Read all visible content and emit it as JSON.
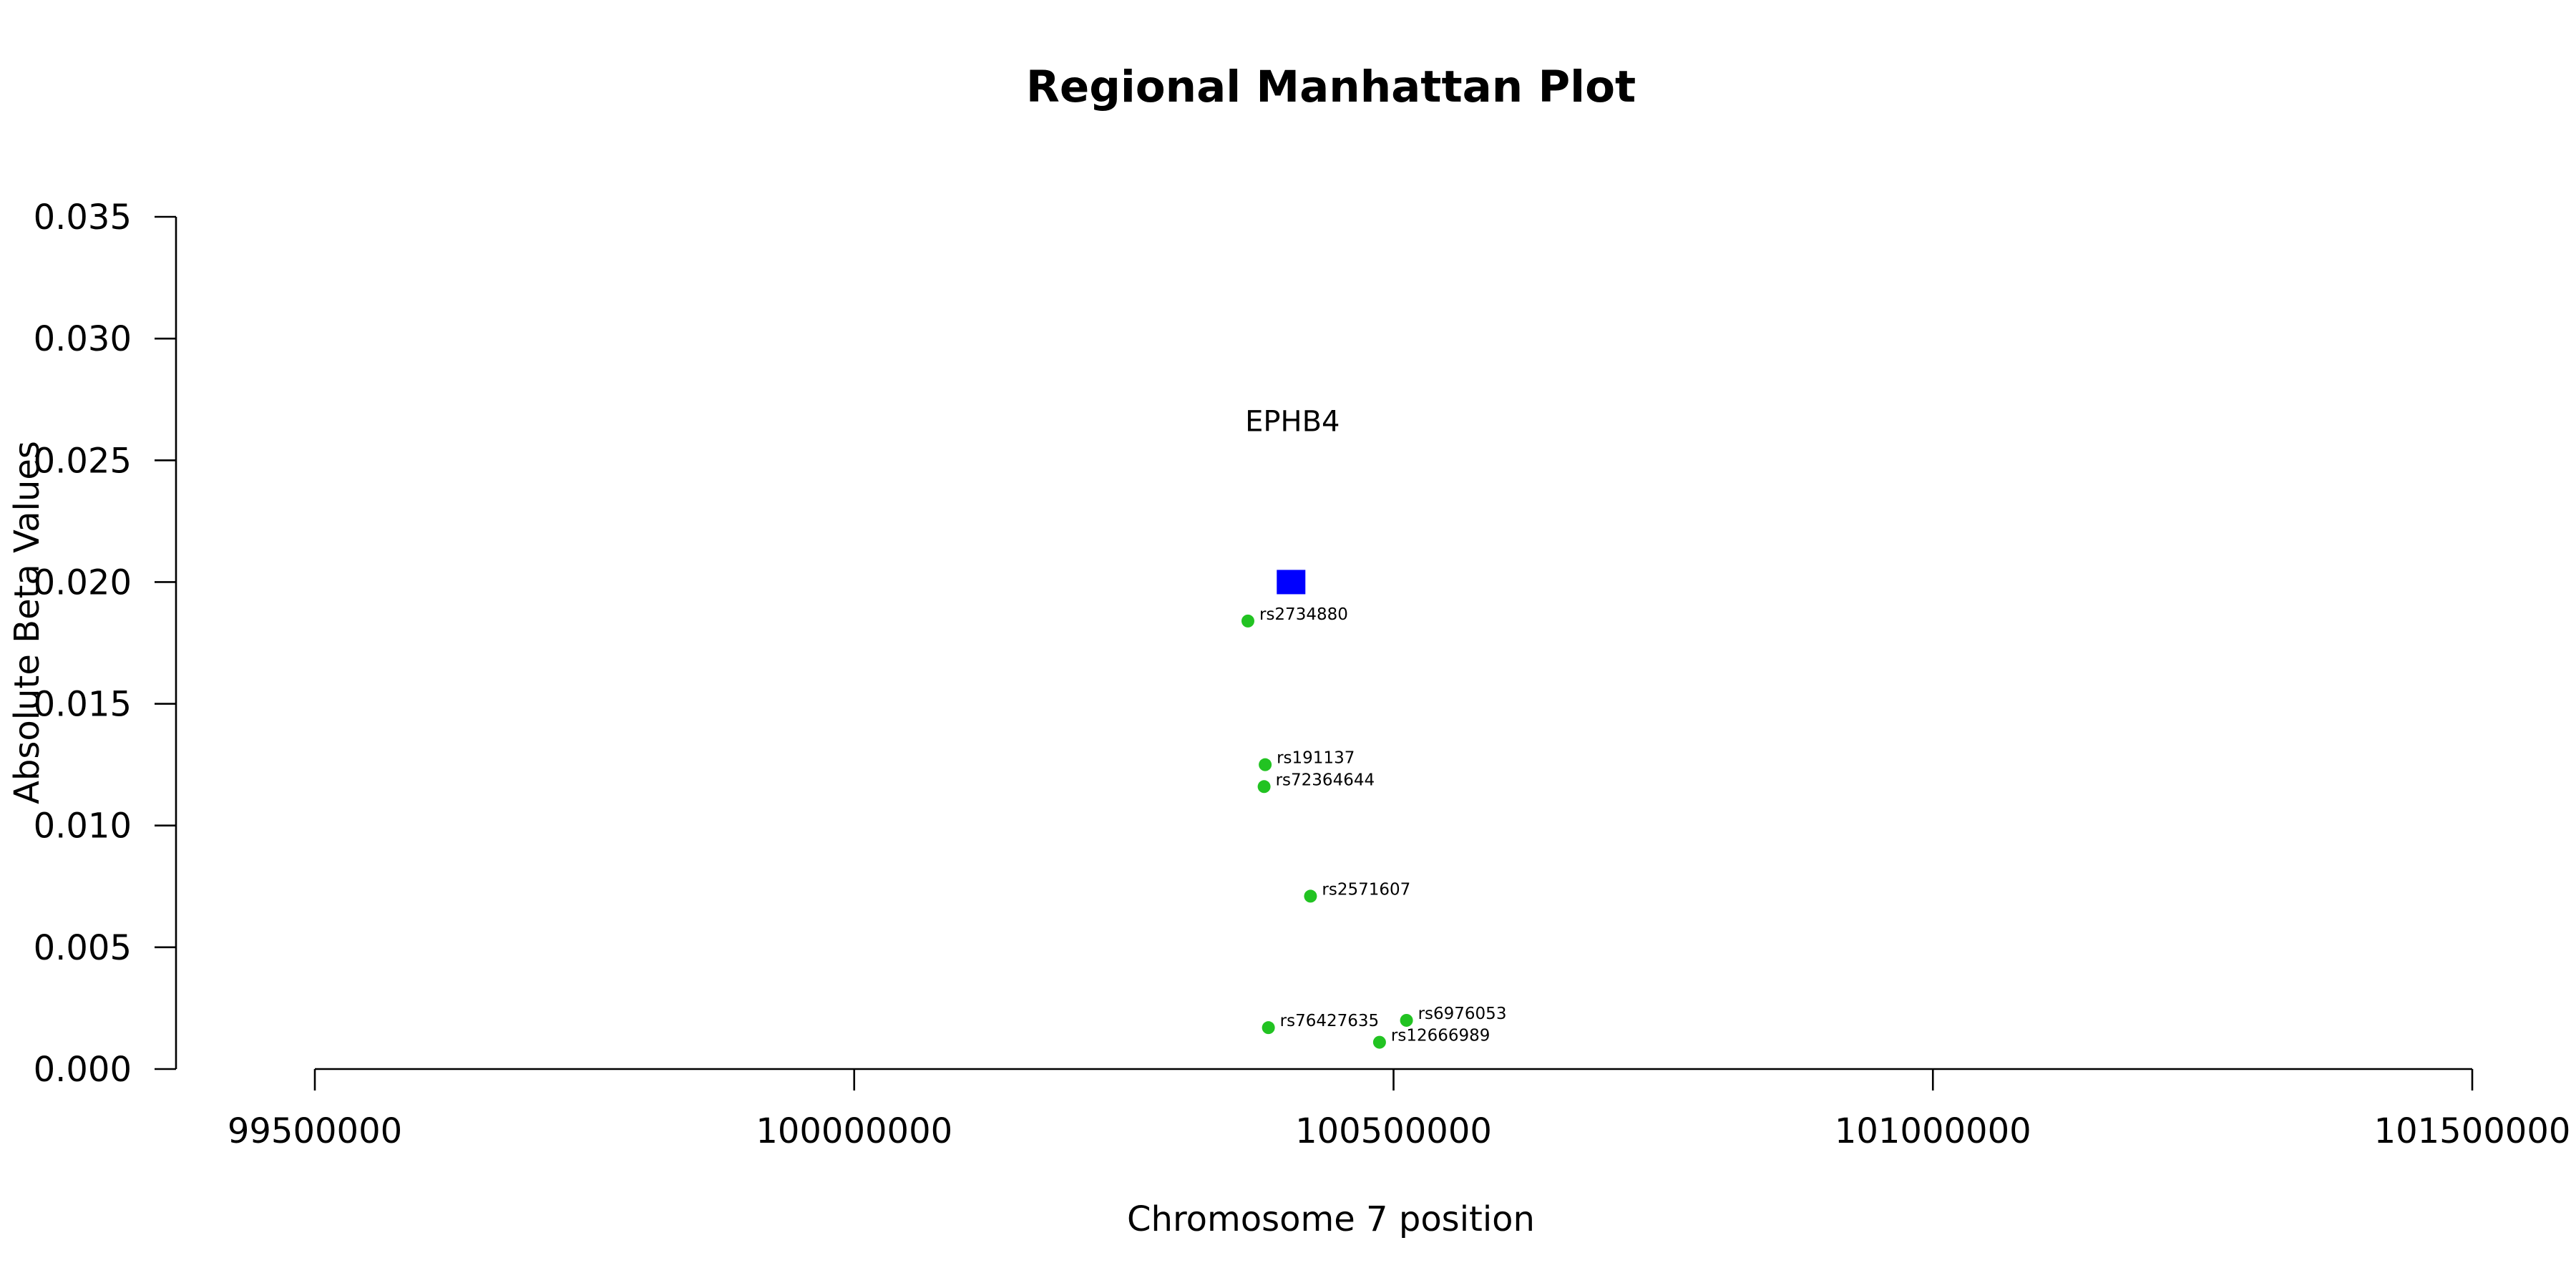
{
  "chart_data": {
    "type": "scatter",
    "title": "Regional Manhattan Plot",
    "xlabel": "Chromosome 7 position",
    "ylabel": "Absolute Beta Values",
    "xlim": [
      99500000,
      101500000
    ],
    "ylim": [
      0,
      0.035
    ],
    "xticks": [
      99500000,
      100000000,
      100500000,
      101000000,
      101500000
    ],
    "xtick_labels": [
      "99500000",
      "100000000",
      "100500000",
      "101000000",
      "101500000"
    ],
    "yticks": [
      0,
      0.005,
      0.01,
      0.015,
      0.02,
      0.025,
      0.03,
      0.035
    ],
    "ytick_labels": [
      "0.000",
      "0.005",
      "0.010",
      "0.015",
      "0.020",
      "0.025",
      "0.030",
      "0.035"
    ],
    "grid": false,
    "colors": {
      "snp": "#22c322",
      "gene": "#0000ff"
    },
    "gene": {
      "label": "EPHB4",
      "x": 100405000,
      "y": 0.02,
      "marker": "square"
    },
    "snps": [
      {
        "id": "rs2734880",
        "x": 100365000,
        "y": 0.0184
      },
      {
        "id": "rs191137",
        "x": 100381000,
        "y": 0.0125
      },
      {
        "id": "rs72364644",
        "x": 100380000,
        "y": 0.0116
      },
      {
        "id": "rs2571607",
        "x": 100423000,
        "y": 0.0071
      },
      {
        "id": "rs6976053",
        "x": 100512000,
        "y": 0.002
      },
      {
        "id": "rs76427635",
        "x": 100384000,
        "y": 0.0017
      },
      {
        "id": "rs12666989",
        "x": 100487000,
        "y": 0.0011
      }
    ]
  }
}
